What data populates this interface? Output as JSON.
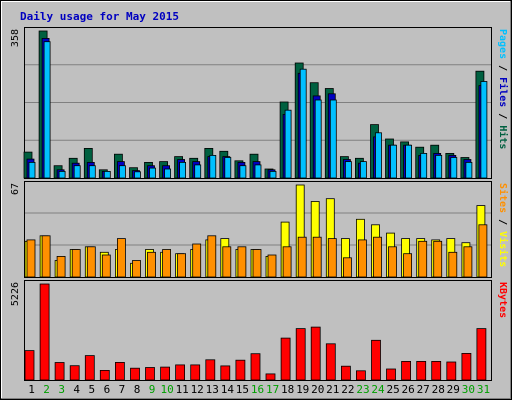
{
  "title": "Daily usage for May 2015",
  "colors": {
    "background": "#c0c0c0",
    "title": "#0000c0",
    "pages": "#00c0ff",
    "files": "#0000c0",
    "hits": "#006040",
    "sites": "#ff9000",
    "visits": "#ffff00",
    "kbytes": "#ff0000",
    "weekend_day": "#00a000",
    "weekday": "#000000"
  },
  "chart_data": [
    {
      "type": "bar",
      "panel": "hits-files-pages",
      "ymax_label": "358",
      "ylim": [
        0,
        358
      ],
      "right_label": [
        {
          "text": "Pages",
          "color": "#00c0ff"
        },
        {
          "text": " / ",
          "color": "#000000"
        },
        {
          "text": "Files",
          "color": "#0000c0"
        },
        {
          "text": " / ",
          "color": "#000000"
        },
        {
          "text": "Hits",
          "color": "#006040"
        }
      ],
      "categories": [
        "1",
        "2",
        "3",
        "4",
        "5",
        "6",
        "7",
        "8",
        "9",
        "10",
        "11",
        "12",
        "13",
        "14",
        "15",
        "16",
        "17",
        "18",
        "19",
        "20",
        "21",
        "22",
        "23",
        "24",
        "25",
        "26",
        "27",
        "28",
        "29",
        "30",
        "31"
      ],
      "series": [
        {
          "name": "Hits",
          "values": [
            63,
            358,
            30,
            48,
            72,
            20,
            58,
            25,
            38,
            40,
            52,
            48,
            72,
            65,
            42,
            58,
            22,
            185,
            280,
            232,
            218,
            52,
            48,
            130,
            95,
            88,
            75,
            80,
            60,
            50,
            260
          ]
        },
        {
          "name": "Files",
          "values": [
            46,
            340,
            20,
            36,
            38,
            16,
            40,
            18,
            30,
            30,
            45,
            40,
            52,
            52,
            38,
            40,
            20,
            155,
            255,
            200,
            205,
            45,
            36,
            100,
            80,
            80,
            55,
            60,
            55,
            45,
            225
          ]
        },
        {
          "name": "Pages",
          "values": [
            38,
            332,
            16,
            30,
            30,
            16,
            30,
            15,
            24,
            22,
            38,
            32,
            55,
            50,
            30,
            32,
            16,
            165,
            265,
            190,
            190,
            40,
            40,
            110,
            80,
            80,
            60,
            55,
            50,
            38,
            235
          ]
        }
      ]
    },
    {
      "type": "bar",
      "panel": "visits-sites",
      "ymax_label": "67",
      "ylim": [
        0,
        67
      ],
      "right_label": [
        {
          "text": "Sites",
          "color": "#ff9000"
        },
        {
          "text": " / ",
          "color": "#000000"
        },
        {
          "text": "Visits",
          "color": "#ffff00"
        }
      ],
      "categories": [
        "1",
        "2",
        "3",
        "4",
        "5",
        "6",
        "7",
        "8",
        "9",
        "10",
        "11",
        "12",
        "13",
        "14",
        "15",
        "16",
        "17",
        "18",
        "19",
        "20",
        "21",
        "22",
        "23",
        "24",
        "25",
        "26",
        "27",
        "28",
        "29",
        "30",
        "31"
      ],
      "series": [
        {
          "name": "Visits",
          "values": [
            26,
            30,
            12,
            20,
            22,
            18,
            20,
            10,
            20,
            18,
            17,
            20,
            27,
            28,
            20,
            20,
            15,
            40,
            67,
            55,
            57,
            28,
            42,
            38,
            32,
            28,
            28,
            27,
            28,
            25,
            52
          ]
        },
        {
          "name": "Sites",
          "values": [
            27,
            30,
            15,
            20,
            22,
            16,
            28,
            12,
            18,
            20,
            17,
            24,
            30,
            22,
            22,
            20,
            16,
            22,
            29,
            29,
            28,
            14,
            27,
            29,
            22,
            17,
            26,
            26,
            18,
            22,
            38
          ]
        }
      ]
    },
    {
      "type": "bar",
      "panel": "kbytes",
      "ymax_label": "5226",
      "ylim": [
        0,
        5226
      ],
      "right_label": [
        {
          "text": "KBytes",
          "color": "#ff0000"
        }
      ],
      "categories": [
        "1",
        "2",
        "3",
        "4",
        "5",
        "6",
        "7",
        "8",
        "9",
        "10",
        "11",
        "12",
        "13",
        "14",
        "15",
        "16",
        "17",
        "18",
        "19",
        "20",
        "21",
        "22",
        "23",
        "24",
        "25",
        "26",
        "27",
        "28",
        "29",
        "30",
        "31"
      ],
      "series": [
        {
          "name": "KBytes",
          "values": [
            1600,
            5226,
            950,
            780,
            1330,
            520,
            960,
            640,
            680,
            700,
            820,
            820,
            1100,
            770,
            1080,
            1430,
            330,
            2280,
            2800,
            2880,
            1970,
            750,
            500,
            2160,
            600,
            1010,
            1010,
            1010,
            980,
            1450,
            2800
          ]
        }
      ]
    }
  ],
  "x_labels": [
    {
      "day": "1",
      "weekend": false
    },
    {
      "day": "2",
      "weekend": true
    },
    {
      "day": "3",
      "weekend": true
    },
    {
      "day": "4",
      "weekend": false
    },
    {
      "day": "5",
      "weekend": false
    },
    {
      "day": "6",
      "weekend": false
    },
    {
      "day": "7",
      "weekend": false
    },
    {
      "day": "8",
      "weekend": false
    },
    {
      "day": "9",
      "weekend": true
    },
    {
      "day": "10",
      "weekend": true
    },
    {
      "day": "11",
      "weekend": false
    },
    {
      "day": "12",
      "weekend": false
    },
    {
      "day": "13",
      "weekend": false
    },
    {
      "day": "14",
      "weekend": false
    },
    {
      "day": "15",
      "weekend": false
    },
    {
      "day": "16",
      "weekend": true
    },
    {
      "day": "17",
      "weekend": true
    },
    {
      "day": "18",
      "weekend": false
    },
    {
      "day": "19",
      "weekend": false
    },
    {
      "day": "20",
      "weekend": false
    },
    {
      "day": "21",
      "weekend": false
    },
    {
      "day": "22",
      "weekend": false
    },
    {
      "day": "23",
      "weekend": true
    },
    {
      "day": "24",
      "weekend": true
    },
    {
      "day": "25",
      "weekend": false
    },
    {
      "day": "26",
      "weekend": false
    },
    {
      "day": "27",
      "weekend": false
    },
    {
      "day": "28",
      "weekend": false
    },
    {
      "day": "29",
      "weekend": false
    },
    {
      "day": "30",
      "weekend": true
    },
    {
      "day": "31",
      "weekend": true
    }
  ]
}
